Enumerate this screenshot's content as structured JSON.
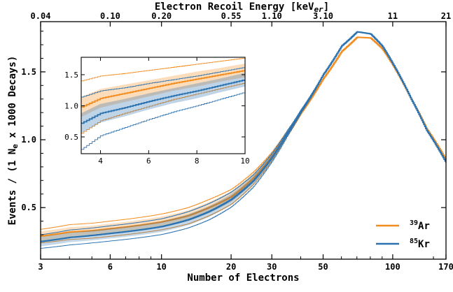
{
  "chart_data": {
    "type": "line",
    "title": "",
    "xlabel": "Number of Electrons",
    "ylabel": "Events / (1 N_e x 1000 Decays)",
    "top_xlabel": "Electron Recoil Energy [keV_er]",
    "x_scale": "log",
    "xlim": [
      3,
      170
    ],
    "ylim": [
      0.12,
      1.87
    ],
    "x_ticks": [
      3,
      6,
      10,
      20,
      30,
      50,
      100,
      170
    ],
    "y_ticks": [
      0.5,
      1.0,
      1.5
    ],
    "y_tick_labels": [
      "0.5",
      "1.0",
      "1.5"
    ],
    "top_ticks": [
      {
        "x": 3,
        "label": "0.04"
      },
      {
        "x": 6,
        "label": "0.10"
      },
      {
        "x": 10,
        "label": "0.20"
      },
      {
        "x": 20,
        "label": "0.55"
      },
      {
        "x": 30,
        "label": "1.10"
      },
      {
        "x": 50,
        "label": "3.10"
      },
      {
        "x": 100,
        "label": "11"
      },
      {
        "x": 170,
        "label": "21"
      }
    ],
    "grid": false,
    "legend_position": "bottom-right",
    "series": [
      {
        "name": "39Ar",
        "label_sup": "39",
        "label_base": "Ar",
        "color": "#f28c1e",
        "x": [
          3,
          4,
          5,
          6,
          8,
          10,
          13,
          16,
          20,
          25,
          30,
          35,
          40,
          50,
          60,
          70,
          80,
          90,
          100,
          120,
          140,
          170
        ],
        "y": [
          0.29,
          0.32,
          0.33,
          0.345,
          0.37,
          0.395,
          0.44,
          0.5,
          0.58,
          0.72,
          0.88,
          1.05,
          1.2,
          1.45,
          1.65,
          1.755,
          1.75,
          1.67,
          1.55,
          1.3,
          1.08,
          0.85
        ],
        "band": [
          0.035,
          0.035,
          0.036,
          0.037,
          0.038,
          0.039,
          0.04,
          0.04,
          0.04,
          0.035,
          0.03,
          0.02,
          0.01,
          0.0,
          0.0,
          0.0,
          0.0,
          0.0,
          0.0,
          0.0,
          0.0,
          0.0
        ],
        "outer": [
          0.05,
          0.055,
          0.055,
          0.056,
          0.057,
          0.058,
          0.06,
          0.06,
          0.055,
          0.045,
          0.03,
          0.02,
          0.01,
          0.0,
          0.0,
          0.0,
          0.0,
          0.0,
          0.0,
          0.0,
          0.0,
          0.0
        ]
      },
      {
        "name": "85Kr",
        "label_sup": "85",
        "label_base": "Kr",
        "color": "#2b72b0",
        "x": [
          3,
          4,
          5,
          6,
          8,
          10,
          13,
          16,
          20,
          25,
          30,
          35,
          40,
          50,
          60,
          70,
          80,
          90,
          100,
          120,
          140,
          170
        ],
        "y": [
          0.25,
          0.28,
          0.295,
          0.31,
          0.335,
          0.36,
          0.41,
          0.47,
          0.56,
          0.7,
          0.87,
          1.05,
          1.21,
          1.48,
          1.69,
          1.795,
          1.78,
          1.69,
          1.56,
          1.3,
          1.07,
          0.83
        ],
        "band": [
          0.035,
          0.035,
          0.036,
          0.037,
          0.038,
          0.039,
          0.04,
          0.04,
          0.04,
          0.035,
          0.03,
          0.02,
          0.01,
          0.0,
          0.0,
          0.0,
          0.0,
          0.0,
          0.0,
          0.0,
          0.0,
          0.0
        ],
        "outer": [
          0.05,
          0.055,
          0.055,
          0.056,
          0.057,
          0.058,
          0.06,
          0.06,
          0.055,
          0.045,
          0.03,
          0.02,
          0.01,
          0.0,
          0.0,
          0.0,
          0.0,
          0.0,
          0.0,
          0.0,
          0.0,
          0.0
        ]
      }
    ],
    "inset": {
      "xlim": [
        3.2,
        10
      ],
      "ylim": [
        0.23,
        1.78
      ],
      "x_ticks": [
        4,
        6,
        8,
        10
      ],
      "y_ticks": [
        0.5,
        1.0,
        1.5
      ],
      "y_tick_labels": [
        "0.5",
        "1.0",
        "1.5"
      ],
      "series": [
        {
          "name": "39Ar",
          "color": "#f28c1e",
          "x": [
            3.2,
            4,
            5,
            6,
            7,
            8,
            9,
            10
          ],
          "y": [
            0.98,
            1.12,
            1.2,
            1.28,
            1.36,
            1.43,
            1.5,
            1.57
          ],
          "band": [
            0.16,
            0.15,
            0.14,
            0.13,
            0.12,
            0.12,
            0.11,
            0.11
          ],
          "outer": [
            0.42,
            0.36,
            0.32,
            0.29,
            0.26,
            0.24,
            0.22,
            0.2
          ]
        },
        {
          "name": "85Kr",
          "color": "#2b72b0",
          "x": [
            3.2,
            4,
            5,
            6,
            7,
            8,
            9,
            10
          ],
          "y": [
            0.72,
            0.88,
            0.97,
            1.07,
            1.16,
            1.24,
            1.33,
            1.42
          ],
          "band": [
            0.16,
            0.15,
            0.14,
            0.13,
            0.12,
            0.12,
            0.11,
            0.11
          ],
          "outer": [
            0.42,
            0.36,
            0.32,
            0.29,
            0.26,
            0.24,
            0.22,
            0.2
          ]
        }
      ]
    }
  }
}
